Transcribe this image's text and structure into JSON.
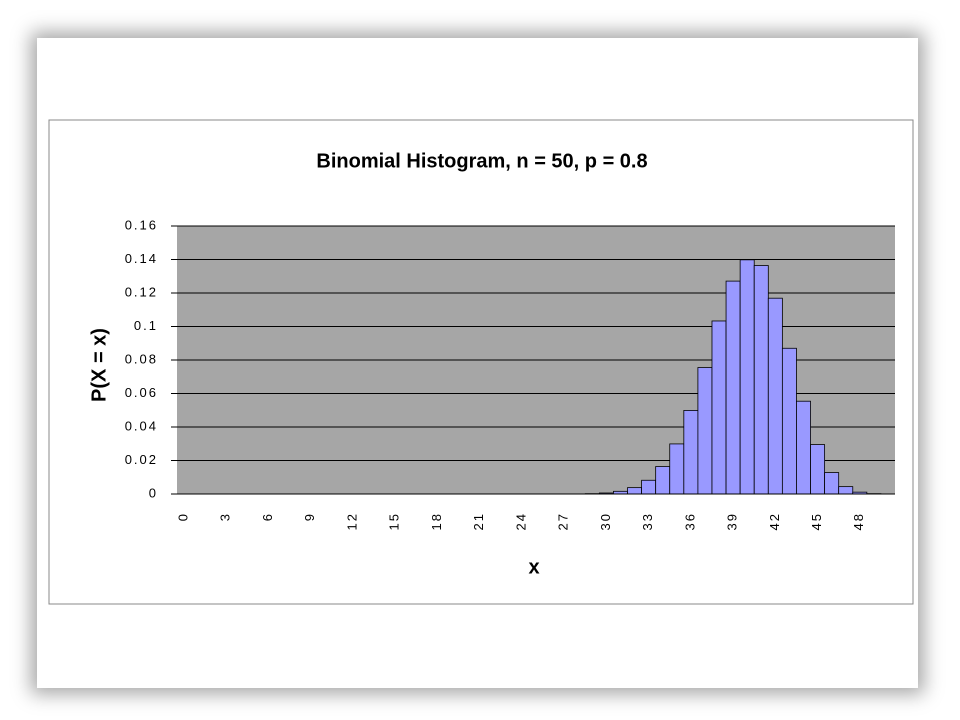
{
  "chart_data": {
    "type": "bar",
    "title": "Binomial Histogram, n = 50, p = 0.8",
    "x_label": "x",
    "y_label": "P(X = x)",
    "categories": [
      0,
      null,
      null,
      3,
      null,
      null,
      6,
      null,
      null,
      9,
      null,
      null,
      12,
      null,
      null,
      15,
      null,
      null,
      18,
      null,
      null,
      21,
      null,
      null,
      24,
      null,
      null,
      27,
      null,
      null,
      30,
      null,
      null,
      33,
      null,
      null,
      36,
      null,
      null,
      39,
      null,
      null,
      42,
      null,
      null,
      45,
      null,
      null,
      48,
      null,
      null
    ],
    "values": [
      0,
      0,
      0,
      0,
      0,
      0,
      0,
      0,
      0,
      0,
      0,
      0,
      0,
      0,
      0,
      0,
      0,
      0,
      0,
      0,
      0,
      0,
      0,
      0,
      0,
      0,
      0,
      0,
      0,
      0.0002,
      0.0006,
      0.0016,
      0.0038,
      0.0082,
      0.0164,
      0.0299,
      0.0499,
      0.0755,
      0.1033,
      0.1271,
      0.1398,
      0.1364,
      0.1169,
      0.087,
      0.0554,
      0.0295,
      0.0128,
      0.0044,
      0.0011,
      0.0002,
      0
    ],
    "color": "#9999ff",
    "ylim": [
      0,
      0.16
    ],
    "yticks": [
      0,
      0.02,
      0.04,
      0.06,
      0.08,
      0.1,
      0.12,
      0.14,
      0.16
    ],
    "grid": true
  }
}
